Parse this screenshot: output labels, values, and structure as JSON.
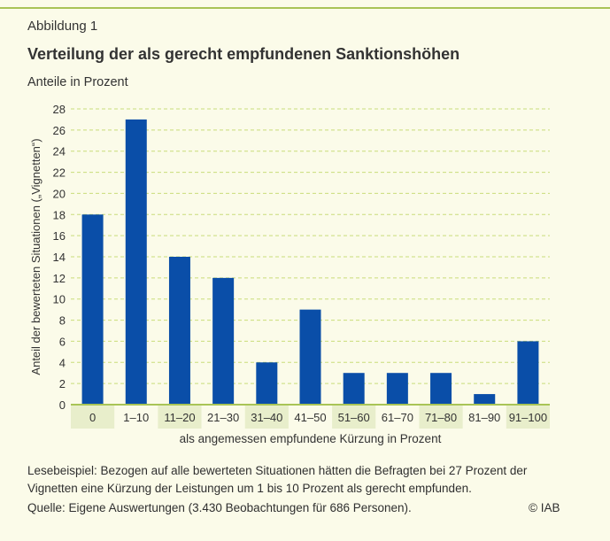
{
  "figure_label": "Abbildung 1",
  "caption": "Lesebeispiel: Bezogen auf alle bewerteten Situationen hätten die Befragten bei 27 Prozent der Vignetten eine Kürzung der Leistungen um 1 bis 10 Prozent als gerecht empfunden.",
  "source": "Quelle: Eigene Auswertungen (3.430 Beobachtungen für 686 Personen).",
  "copyright": "© IAB",
  "colors": {
    "background": "#fbfbe9",
    "accent_rule": "#a9c456",
    "bar": "#0a4ea8",
    "grid": "#c9dc7a",
    "tick_label_bg": "#e8eecb"
  },
  "chart_data": {
    "type": "bar",
    "title": "Verteilung der als gerecht empfundenen Sanktionshöhen",
    "subtitle": "Anteile in Prozent",
    "xlabel": "als angemessen empfundene Kürzung in Prozent",
    "ylabel": "Anteil der bewerteten Situationen („Vignetten“)",
    "categories": [
      "0",
      "1–10",
      "11–20",
      "21–30",
      "31–40",
      "41–50",
      "51–60",
      "61–70",
      "71–80",
      "81–90",
      "91–100"
    ],
    "values": [
      18,
      27,
      14,
      12,
      4,
      9,
      3,
      3,
      3,
      1,
      6
    ],
    "ylim": [
      0,
      28
    ],
    "yticks": [
      0,
      2,
      4,
      6,
      8,
      10,
      12,
      14,
      16,
      18,
      20,
      22,
      24,
      26,
      28
    ],
    "grid": true,
    "grid_style": "dashed",
    "legend": "none"
  }
}
